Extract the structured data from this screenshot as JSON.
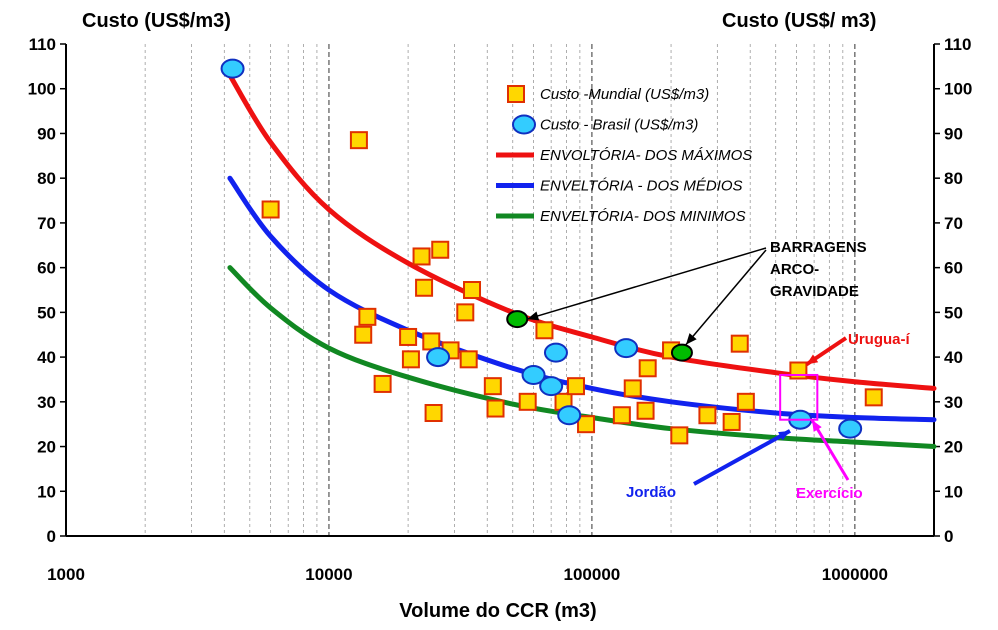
{
  "chart_data": {
    "type": "scatter",
    "xlabel": "Volume do CCR (m3)",
    "ylabel_left": "Custo (US$/m3)",
    "ylabel_right": "Custo (US$/ m3)",
    "x_scale": "log",
    "xlim": [
      1000,
      2000000
    ],
    "ylim": [
      0,
      110
    ],
    "x_ticks": [
      1000,
      10000,
      100000,
      1000000
    ],
    "x_tick_labels": [
      "1000",
      "10000",
      "100000",
      "1000000"
    ],
    "y_ticks": [
      0,
      10,
      20,
      30,
      40,
      50,
      60,
      70,
      80,
      90,
      100,
      110
    ],
    "y_tick_labels": [
      "0",
      "10",
      "20",
      "30",
      "40",
      "50",
      "60",
      "70",
      "80",
      "90",
      "100",
      "110"
    ],
    "grid": "vertical log gridlines",
    "legend_placement": "top-right",
    "series": [
      {
        "name": "Custo -Mundial (US$/m3)",
        "kind": "points",
        "marker": "square",
        "color": "#ffd700",
        "edge": "#e03000",
        "points": [
          [
            6000,
            73
          ],
          [
            13000,
            88.5
          ],
          [
            13500,
            45
          ],
          [
            14000,
            49
          ],
          [
            16000,
            34
          ],
          [
            20000,
            44.5
          ],
          [
            20500,
            39.5
          ],
          [
            22500,
            62.5
          ],
          [
            23000,
            55.5
          ],
          [
            24500,
            43.5
          ],
          [
            25000,
            27.5
          ],
          [
            26500,
            64
          ],
          [
            29000,
            41.5
          ],
          [
            33000,
            50
          ],
          [
            34000,
            39.5
          ],
          [
            35000,
            55
          ],
          [
            42000,
            33.5
          ],
          [
            43000,
            28.5
          ],
          [
            57000,
            30
          ],
          [
            66000,
            46
          ],
          [
            78000,
            30
          ],
          [
            87000,
            33.5
          ],
          [
            95000,
            25
          ],
          [
            130000,
            27
          ],
          [
            143000,
            33
          ],
          [
            160000,
            28
          ],
          [
            163000,
            37.5
          ],
          [
            200000,
            41.5
          ],
          [
            215000,
            22.5
          ],
          [
            275000,
            27
          ],
          [
            340000,
            25.5
          ],
          [
            365000,
            43
          ],
          [
            385000,
            30
          ],
          [
            610000,
            37
          ],
          [
            1180000,
            31
          ]
        ]
      },
      {
        "name": "Custo - Brasil (US$/m3)",
        "kind": "points",
        "marker": "circle",
        "color": "#33ccff",
        "edge": "#1030c0",
        "points": [
          [
            4300,
            104.5
          ],
          [
            26000,
            40
          ],
          [
            60000,
            36
          ],
          [
            70000,
            33.5
          ],
          [
            73000,
            41
          ],
          [
            82000,
            27
          ],
          [
            135000,
            42
          ],
          [
            620000,
            26
          ],
          [
            960000,
            24
          ]
        ]
      },
      {
        "name": "ENVOLTÓRIA- DOS MÁXIMOS",
        "kind": "curve",
        "color": "#ee1111",
        "points": [
          [
            4200,
            103
          ],
          [
            6000,
            88
          ],
          [
            10000,
            73
          ],
          [
            20000,
            61
          ],
          [
            50000,
            50
          ],
          [
            100000,
            44.5
          ],
          [
            200000,
            40
          ],
          [
            500000,
            36.5
          ],
          [
            1000000,
            34.5
          ],
          [
            2000000,
            33
          ]
        ]
      },
      {
        "name": "ENVELTÓRIA - DOS MÉDIOS",
        "kind": "curve",
        "color": "#1122ee",
        "points": [
          [
            4200,
            80
          ],
          [
            6000,
            67
          ],
          [
            10000,
            55
          ],
          [
            20000,
            46
          ],
          [
            50000,
            37.5
          ],
          [
            100000,
            33
          ],
          [
            200000,
            30
          ],
          [
            500000,
            27.5
          ],
          [
            1000000,
            26.5
          ],
          [
            2000000,
            26
          ]
        ]
      },
      {
        "name": "ENVELTÓRIA- DOS MINIMOS",
        "kind": "curve",
        "color": "#118822",
        "points": [
          [
            4200,
            60
          ],
          [
            6000,
            51
          ],
          [
            10000,
            42
          ],
          [
            20000,
            35.5
          ],
          [
            50000,
            29.5
          ],
          [
            100000,
            26.5
          ],
          [
            200000,
            24
          ],
          [
            500000,
            22
          ],
          [
            1000000,
            21
          ],
          [
            2000000,
            20
          ]
        ]
      },
      {
        "name": "",
        "kind": "points",
        "marker": "circle",
        "color": "#00bb00",
        "edge": "#000000",
        "points": [
          [
            52000,
            48.5
          ],
          [
            220000,
            41
          ]
        ]
      }
    ],
    "annotations": {
      "barragens_lines": [
        "BARRAGENS",
        "ARCO-",
        "GRAVIDADE"
      ],
      "urugua": "Urugua-í",
      "jordao": "Jordão",
      "exercicio": "Exercício"
    },
    "exercise_box": {
      "x_range": [
        520000,
        720000
      ],
      "y_range": [
        26,
        36
      ]
    },
    "colors": {
      "annot_black": "#000000",
      "urugua": "#ee1111",
      "jordao": "#1122ee",
      "exercicio": "#ff00ff"
    }
  }
}
